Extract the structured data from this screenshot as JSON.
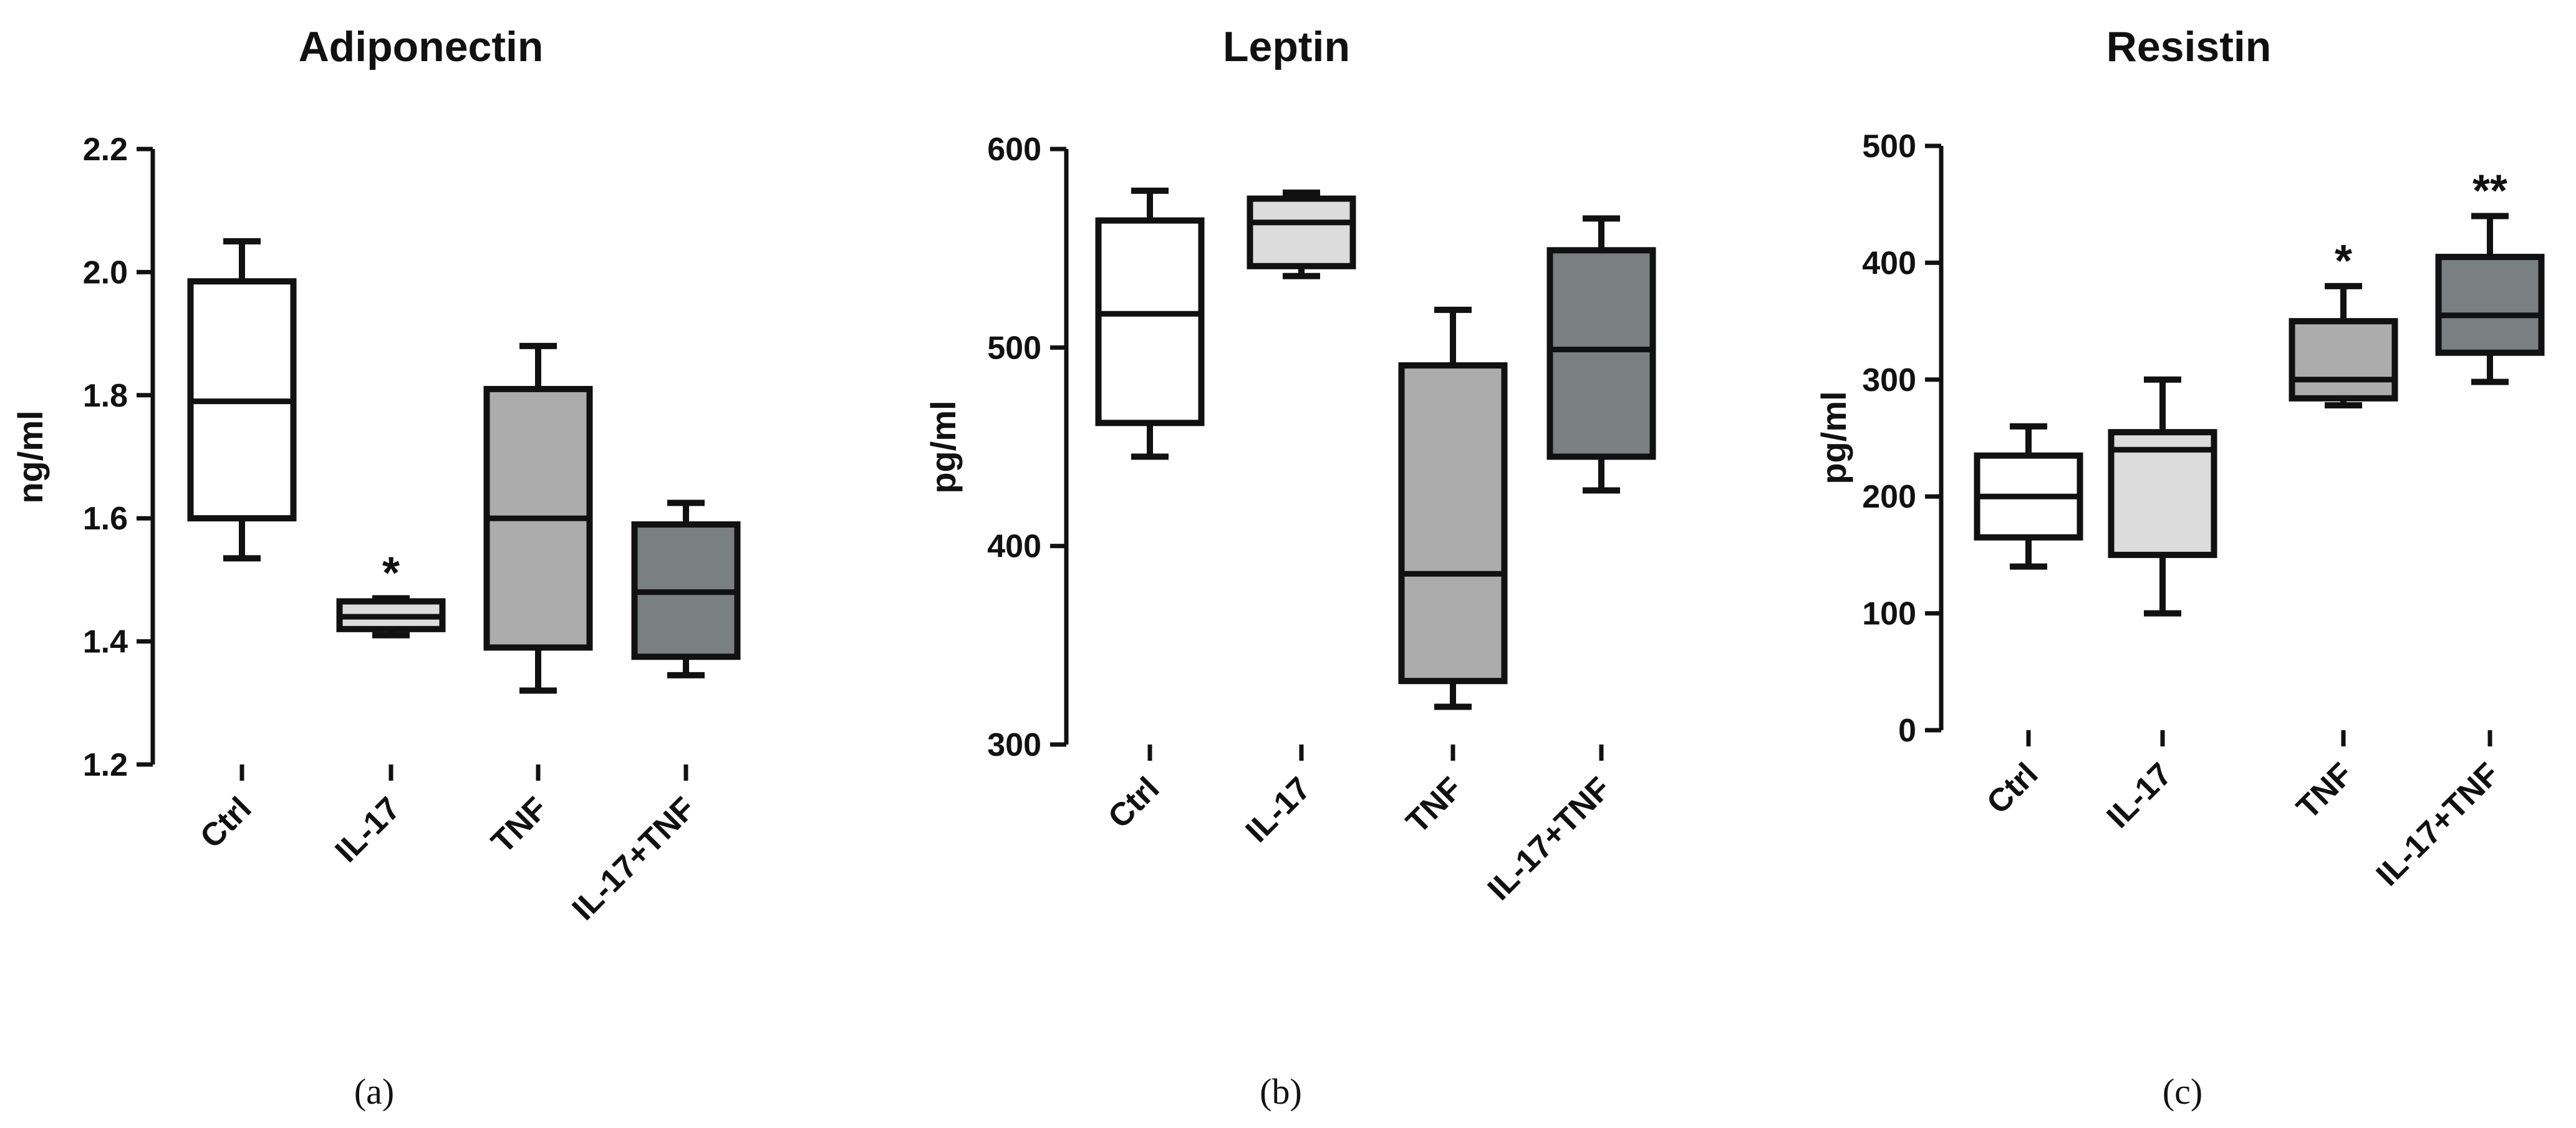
{
  "colors": {
    "Ctrl": "#ffffff",
    "IL-17": "#dcdcdc",
    "TNF": "#acacac",
    "IL-17+TNF": "#7a7f7f",
    "stroke": "#111111"
  },
  "chart_data": [
    {
      "type": "box",
      "title": "Adiponectin",
      "ylabel": "ng/ml",
      "panel_label": "(a)",
      "categories": [
        "Ctrl",
        "IL-17",
        "TNF",
        "IL-17+TNF"
      ],
      "ylim": [
        1.2,
        2.2
      ],
      "yticks": [
        1.2,
        1.4,
        1.6,
        1.8,
        2.0,
        2.2
      ],
      "tick_labels": [
        "1.2",
        "1.4",
        "1.6",
        "1.8",
        "2.0",
        "2.2"
      ],
      "boxes": [
        {
          "min": 1.535,
          "q1": 1.6,
          "median": 1.79,
          "q3": 1.985,
          "max": 2.05,
          "annotation": ""
        },
        {
          "min": 1.41,
          "q1": 1.42,
          "median": 1.44,
          "q3": 1.465,
          "max": 1.47,
          "annotation": "*"
        },
        {
          "min": 1.32,
          "q1": 1.39,
          "median": 1.6,
          "q3": 1.81,
          "max": 1.88,
          "annotation": ""
        },
        {
          "min": 1.345,
          "q1": 1.375,
          "median": 1.48,
          "q3": 1.59,
          "max": 1.625,
          "annotation": ""
        }
      ]
    },
    {
      "type": "box",
      "title": "Leptin",
      "ylabel": "pg/ml",
      "panel_label": "(b)",
      "categories": [
        "Ctrl",
        "IL-17",
        "TNF",
        "IL-17+TNF"
      ],
      "ylim": [
        300,
        600
      ],
      "yticks": [
        300,
        400,
        500,
        600
      ],
      "tick_labels": [
        "300",
        "400",
        "500",
        "600"
      ],
      "boxes": [
        {
          "min": 445,
          "q1": 462,
          "median": 517,
          "q3": 564,
          "max": 579,
          "annotation": ""
        },
        {
          "min": 536,
          "q1": 541,
          "median": 563,
          "q3": 575,
          "max": 578,
          "annotation": ""
        },
        {
          "min": 319,
          "q1": 332,
          "median": 386,
          "q3": 491,
          "max": 519,
          "annotation": ""
        },
        {
          "min": 428,
          "q1": 445,
          "median": 499,
          "q3": 549,
          "max": 565,
          "annotation": ""
        }
      ]
    },
    {
      "type": "box",
      "title": "Resistin",
      "ylabel": "pg/ml",
      "panel_label": "(c)",
      "categories": [
        "Ctrl",
        "IL-17",
        "TNF",
        "IL-17+TNF"
      ],
      "ylim": [
        0,
        500
      ],
      "yticks": [
        0,
        100,
        200,
        300,
        400,
        500
      ],
      "tick_labels": [
        "0",
        "100",
        "200",
        "300",
        "400",
        "500"
      ],
      "boxes": [
        {
          "min": 140,
          "q1": 165,
          "median": 200,
          "q3": 235,
          "max": 260,
          "annotation": ""
        },
        {
          "min": 100,
          "q1": 150,
          "median": 240,
          "q3": 255,
          "max": 300,
          "annotation": ""
        },
        {
          "min": 278,
          "q1": 284,
          "median": 300,
          "q3": 350,
          "max": 380,
          "annotation": "*"
        },
        {
          "min": 298,
          "q1": 323,
          "median": 355,
          "q3": 405,
          "max": 440,
          "annotation": "**"
        }
      ]
    }
  ]
}
